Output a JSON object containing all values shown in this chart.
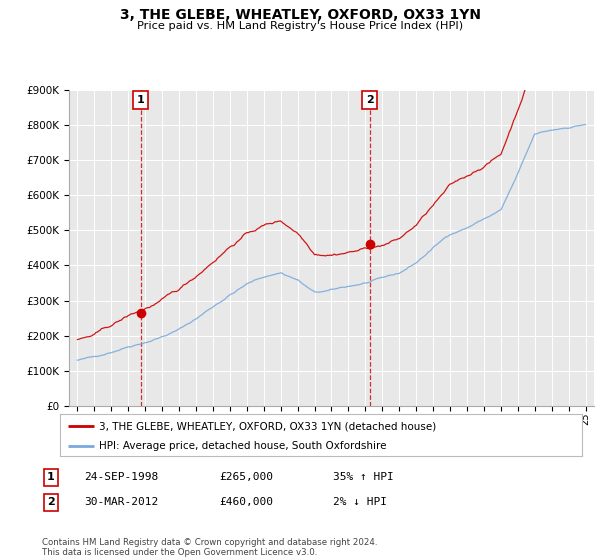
{
  "title": "3, THE GLEBE, WHEATLEY, OXFORD, OX33 1YN",
  "subtitle": "Price paid vs. HM Land Registry's House Price Index (HPI)",
  "legend_label_red": "3, THE GLEBE, WHEATLEY, OXFORD, OX33 1YN (detached house)",
  "legend_label_blue": "HPI: Average price, detached house, South Oxfordshire",
  "purchase1_label": "1",
  "purchase1_date": "24-SEP-1998",
  "purchase1_price": "£265,000",
  "purchase1_hpi": "35% ↑ HPI",
  "purchase2_label": "2",
  "purchase2_date": "30-MAR-2012",
  "purchase2_price": "£460,000",
  "purchase2_hpi": "2% ↓ HPI",
  "footer": "Contains HM Land Registry data © Crown copyright and database right 2024.\nThis data is licensed under the Open Government Licence v3.0.",
  "marker1_x": 1998.73,
  "marker1_y": 265000,
  "marker2_x": 2012.25,
  "marker2_y": 460000,
  "vline1_x": 1998.73,
  "vline2_x": 2012.25,
  "ylim": [
    0,
    900000
  ],
  "xlim_left": 1994.5,
  "xlim_right": 2025.5,
  "color_red": "#cc0000",
  "color_blue": "#7aaadd",
  "color_vline": "#cc0000",
  "background_plot": "#e8e8e8",
  "background_fig": "#ffffff",
  "xtick_start": 1995,
  "xtick_end": 2025
}
